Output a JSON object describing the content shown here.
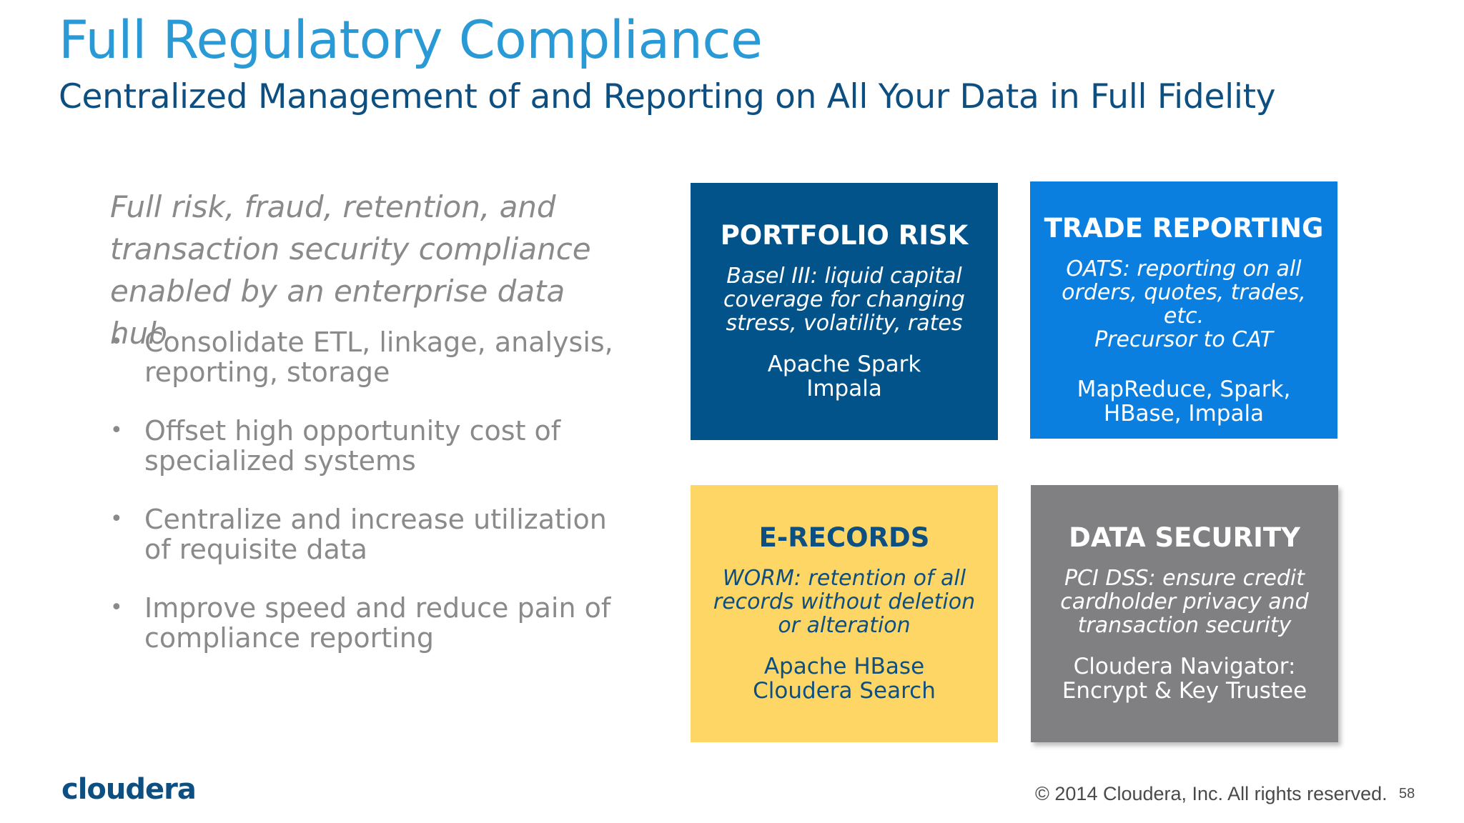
{
  "slide": {
    "title": "Full Regulatory Compliance",
    "subtitle": "Centralized Management of and Reporting on All Your Data in Full Fidelity",
    "intro": "Full risk, fraud, retention, and transaction security compliance enabled by an enterprise data hub",
    "bullets": [
      "Consolidate ETL, linkage, analysis, reporting, storage",
      "Offset high opportunity cost of specialized systems",
      "Centralize and increase utilization of requisite data",
      "Improve speed and reduce pain of compliance reporting"
    ],
    "bullet_glyph": "•"
  },
  "cards": [
    {
      "title": "PORTFOLIO RISK",
      "desc": "Basel III: liquid capital coverage for changing stress, volatility, rates",
      "tech_lines": [
        "Apache Spark",
        "Impala"
      ],
      "color": "#02538a"
    },
    {
      "title": "TRADE REPORTING",
      "desc_lines": [
        "OATS: reporting on all",
        "orders, quotes, trades, etc.",
        "Precursor to CAT"
      ],
      "tech_lines": [
        "MapReduce, Spark,",
        "HBase, Impala"
      ],
      "color": "#0b7fe0"
    },
    {
      "title": "E-RECORDS",
      "desc": "WORM: retention of all records without deletion or alteration",
      "tech_lines": [
        "Apache HBase",
        "Cloudera Search"
      ],
      "color": "#fdd665"
    },
    {
      "title": "DATA SECURITY",
      "desc": "PCI DSS: ensure credit cardholder privacy and transaction security",
      "tech_lines": [
        "Cloudera Navigator:",
        "Encrypt & Key Trustee"
      ],
      "color": "#807f81"
    }
  ],
  "footer": {
    "logo": "cloudera",
    "copyright": "© 2014 Cloudera, Inc. All rights reserved.",
    "page_number": "58"
  }
}
